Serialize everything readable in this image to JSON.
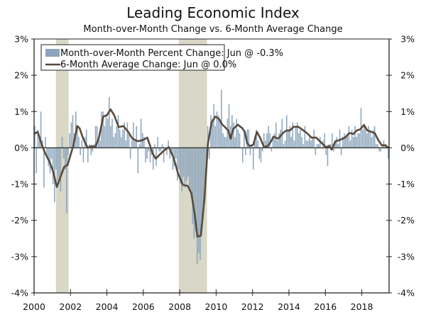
{
  "chart_data": {
    "type": "bar+line",
    "title": "Leading Economic Index",
    "subtitle": "Month-over-Month Change vs. 6-Month Average Change",
    "xlabel": "",
    "ylabel": "",
    "ylim": [
      -4,
      3
    ],
    "xlim": [
      2000,
      2019.5
    ],
    "y_ticks": [
      "3%",
      "2%",
      "1%",
      "0%",
      "-1%",
      "-2%",
      "-3%",
      "-4%"
    ],
    "y_tick_values": [
      3,
      2,
      1,
      0,
      -1,
      -2,
      -3,
      -4
    ],
    "x_ticks": [
      "2000",
      "2002",
      "2004",
      "2006",
      "2008",
      "2010",
      "2012",
      "2014",
      "2016",
      "2018"
    ],
    "x_tick_values": [
      2000,
      2002,
      2004,
      2006,
      2008,
      2010,
      2012,
      2014,
      2016,
      2018
    ],
    "grid": false,
    "legend_position": "top-left",
    "recessions": [
      [
        2001.2,
        2001.9
      ],
      [
        2007.95,
        2009.5
      ]
    ],
    "colors": {
      "bars": "#8ba5bd",
      "line": "#594a3c",
      "recession": "#d9d7c5",
      "zero": "#333333"
    },
    "series": [
      {
        "name": "Month-over-Month Percent Change: Jun @ -0.3%",
        "type": "bar",
        "start": "2000-01",
        "frequency": "monthly",
        "values": [
          0.6,
          -0.7,
          0.5,
          0.3,
          1.0,
          0.2,
          -1.1,
          0.3,
          -0.2,
          -0.5,
          -0.7,
          -0.3,
          -1.0,
          -1.5,
          -0.6,
          -0.9,
          -0.8,
          -1.2,
          0.3,
          -0.3,
          -0.6,
          -1.8,
          -0.2,
          0.4,
          0.7,
          0.9,
          0.4,
          1.0,
          0.6,
          0.3,
          -0.2,
          0.2,
          -0.4,
          0.3,
          0.5,
          -0.4,
          0.1,
          -0.2,
          -0.1,
          0.1,
          0.6,
          0.6,
          0.3,
          0.2,
          1.0,
          1.0,
          0.6,
          0.9,
          0.8,
          1.4,
          0.6,
          0.8,
          0.3,
          0.4,
          0.6,
          0.9,
          0.5,
          0.3,
          0.5,
          0.7,
          0.2,
          0.7,
          0.4,
          -0.3,
          0.2,
          0.7,
          0.2,
          0.6,
          -0.7,
          0.1,
          0.8,
          0.4,
          0.3,
          -0.4,
          -0.3,
          -0.1,
          -0.4,
          -0.2,
          -0.6,
          0.1,
          -0.5,
          0.3,
          -0.1,
          -0.1,
          0.1,
          -0.4,
          0.0,
          -0.2,
          0.2,
          -0.3,
          -0.2,
          -0.6,
          -0.5,
          -0.3,
          -0.9,
          -0.6,
          -1.0,
          -1.2,
          -0.8,
          -1.1,
          -0.9,
          -0.8,
          -1.1,
          -1.3,
          -2.1,
          -2.5,
          -2.3,
          -3.2,
          -2.9,
          -3.1,
          -2.3,
          -1.9,
          -1.5,
          -0.6,
          0.6,
          -0.3,
          0.9,
          0.8,
          1.2,
          0.6,
          1.0,
          0.9,
          0.8,
          1.6,
          0.4,
          0.3,
          0.3,
          0.8,
          1.2,
          0.6,
          0.9,
          0.7,
          0.3,
          0.8,
          0.5,
          0.4,
          0.0,
          -0.4,
          0.5,
          -0.2,
          0.5,
          0.5,
          -0.2,
          0.1,
          -0.6,
          0.3,
          0.5,
          0.2,
          -0.3,
          -0.4,
          -0.1,
          0.4,
          0.2,
          0.4,
          0.6,
          0.4,
          -0.1,
          0.3,
          0.4,
          0.7,
          0.2,
          0.4,
          0.5,
          0.8,
          0.1,
          0.2,
          0.9,
          0.5,
          0.6,
          0.3,
          0.7,
          0.2,
          0.6,
          0.7,
          0.4,
          0.5,
          0.3,
          0.1,
          0.6,
          0.2,
          0.2,
          0.3,
          0.2,
          0.3,
          0.5,
          -0.2,
          0.1,
          0.1,
          0.3,
          0.0,
          0.2,
          0.4,
          -0.2,
          -0.5,
          0.1,
          0.1,
          0.4,
          -0.1,
          0.2,
          0.3,
          0.1,
          0.5,
          -0.2,
          0.3,
          0.4,
          0.3,
          0.4,
          0.6,
          0.2,
          0.5,
          0.3,
          0.6,
          0.3,
          0.4,
          0.4,
          1.1,
          0.5,
          0.6,
          0.6,
          0.4,
          0.6,
          0.5,
          0.3,
          0.5,
          0.6,
          0.1,
          0.1,
          -0.1,
          -0.1,
          0.1,
          0.2,
          0.1,
          0.0,
          -0.3
        ]
      },
      {
        "name": "6-Month Average Change: Jun @ 0.0%",
        "type": "line",
        "points": [
          [
            2000.0,
            0.38
          ],
          [
            2000.2,
            0.44
          ],
          [
            2000.4,
            0.12
          ],
          [
            2000.6,
            -0.14
          ],
          [
            2000.86,
            -0.4
          ],
          [
            2001.05,
            -0.66
          ],
          [
            2001.25,
            -1.08
          ],
          [
            2001.5,
            -0.73
          ],
          [
            2001.65,
            -0.53
          ],
          [
            2001.84,
            -0.47
          ],
          [
            2002.0,
            -0.2
          ],
          [
            2002.15,
            0.05
          ],
          [
            2002.37,
            0.6
          ],
          [
            2002.5,
            0.54
          ],
          [
            2002.7,
            0.25
          ],
          [
            2002.95,
            0.0
          ],
          [
            2003.15,
            0.05
          ],
          [
            2003.35,
            0.02
          ],
          [
            2003.55,
            0.25
          ],
          [
            2003.8,
            0.86
          ],
          [
            2004.0,
            0.9
          ],
          [
            2004.2,
            1.06
          ],
          [
            2004.4,
            0.9
          ],
          [
            2004.65,
            0.57
          ],
          [
            2004.9,
            0.6
          ],
          [
            2005.17,
            0.44
          ],
          [
            2005.4,
            0.25
          ],
          [
            2005.7,
            0.18
          ],
          [
            2005.96,
            0.21
          ],
          [
            2006.22,
            0.28
          ],
          [
            2006.5,
            -0.14
          ],
          [
            2006.68,
            -0.3
          ],
          [
            2006.87,
            -0.2
          ],
          [
            2007.13,
            -0.08
          ],
          [
            2007.4,
            0.02
          ],
          [
            2007.66,
            -0.27
          ],
          [
            2007.92,
            -0.73
          ],
          [
            2008.18,
            -1.02
          ],
          [
            2008.44,
            -1.05
          ],
          [
            2008.64,
            -1.25
          ],
          [
            2008.84,
            -1.9
          ],
          [
            2008.97,
            -2.45
          ],
          [
            2009.16,
            -2.42
          ],
          [
            2009.36,
            -1.38
          ],
          [
            2009.55,
            0.12
          ],
          [
            2009.75,
            0.7
          ],
          [
            2009.95,
            0.86
          ],
          [
            2010.15,
            0.8
          ],
          [
            2010.34,
            0.64
          ],
          [
            2010.47,
            0.58
          ],
          [
            2010.66,
            0.48
          ],
          [
            2010.8,
            0.25
          ],
          [
            2010.93,
            0.51
          ],
          [
            2011.18,
            0.64
          ],
          [
            2011.44,
            0.54
          ],
          [
            2011.57,
            0.44
          ],
          [
            2011.71,
            0.12
          ],
          [
            2011.84,
            0.05
          ],
          [
            2012.04,
            0.08
          ],
          [
            2012.24,
            0.44
          ],
          [
            2012.44,
            0.25
          ],
          [
            2012.63,
            0.02
          ],
          [
            2012.83,
            0.05
          ],
          [
            2013.02,
            0.18
          ],
          [
            2013.15,
            0.31
          ],
          [
            2013.41,
            0.25
          ],
          [
            2013.67,
            0.41
          ],
          [
            2013.87,
            0.48
          ],
          [
            2014.06,
            0.48
          ],
          [
            2014.25,
            0.58
          ],
          [
            2014.52,
            0.58
          ],
          [
            2014.71,
            0.51
          ],
          [
            2014.98,
            0.41
          ],
          [
            2015.24,
            0.28
          ],
          [
            2015.5,
            0.28
          ],
          [
            2015.76,
            0.15
          ],
          [
            2016.03,
            0.02
          ],
          [
            2016.22,
            0.05
          ],
          [
            2016.35,
            -0.05
          ],
          [
            2016.55,
            0.18
          ],
          [
            2016.81,
            0.22
          ],
          [
            2017.07,
            0.28
          ],
          [
            2017.33,
            0.41
          ],
          [
            2017.53,
            0.38
          ],
          [
            2017.73,
            0.48
          ],
          [
            2017.92,
            0.51
          ],
          [
            2018.12,
            0.63
          ],
          [
            2018.31,
            0.48
          ],
          [
            2018.51,
            0.44
          ],
          [
            2018.71,
            0.41
          ],
          [
            2018.9,
            0.22
          ],
          [
            2019.1,
            0.07
          ],
          [
            2019.3,
            0.07
          ],
          [
            2019.46,
            0.0
          ]
        ]
      }
    ]
  }
}
